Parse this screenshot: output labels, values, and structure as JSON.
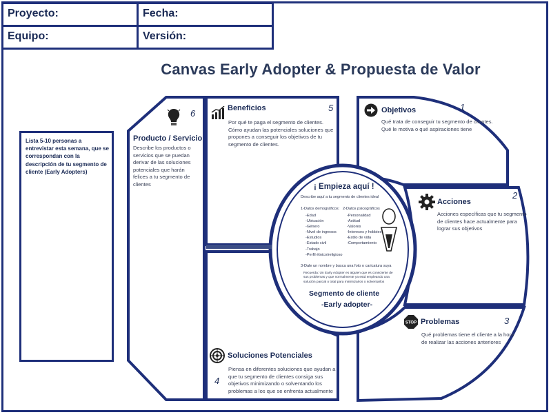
{
  "header": {
    "proyecto_label": "Proyecto:",
    "fecha_label": "Fecha:",
    "equipo_label": "Equipo:",
    "version_label": "Versión:"
  },
  "title": "Canvas Early Adopter & Propuesta de Valor",
  "left_box": {
    "text": "Lista 5-10 personas a entrevistar esta semana, que se correspondan con la descripción de tu segmento de cliente (Early Adopters)"
  },
  "producto": {
    "title": "Producto / Servicio",
    "number": "6",
    "icon": "lightbulb-icon",
    "text": "Describe los productos o servicios que se puedan derivar de las soluciones potenciales que harán felices a tu segmento de clientes"
  },
  "beneficios": {
    "title": "Beneficios",
    "number": "5",
    "icon": "chart-icon",
    "text": "Por qué te paga el segmento de clientes. Cómo ayudan las potenciales soluciones que propones a conseguir los objetivos de tu segmento de clientes."
  },
  "soluciones": {
    "title": "Soluciones Potenciales",
    "number": "4",
    "icon": "target-icon",
    "text": "Piensa en diferentes soluciones que ayudan a que tu segmento de clientes consiga sus objetivos minimizando o solventando los problemas a los que se enfrenta actualmente"
  },
  "objetivos": {
    "title": "Objetivos",
    "number": "1",
    "icon": "arrow-circle-icon",
    "text": "Qué trata de conseguir tu segmento de clientes. Qué le motiva o qué aspiraciones tiene"
  },
  "acciones": {
    "title": "Acciones",
    "number": "2",
    "icon": "gear-icon",
    "text": "Acciones específicas que tu segmento de clientes hace actualmente para lograr sus objetivos"
  },
  "problemas": {
    "title": "Problemas",
    "number": "3",
    "icon": "stop-icon",
    "icon_text": "STOP",
    "text": "Qué problemas tiene el cliente a la hora de realizar las acciones anteriores"
  },
  "segmento": {
    "heading": "¡ Empieza aquí !",
    "subheading": "Describe aquí a tu segmento de clientes ideal",
    "demo_title": "1-Datos demográficos:",
    "demo_items": [
      "-Edad",
      "-Ubicación",
      "-Género",
      "-Nivel de ingresos",
      "-Estudios",
      "-Estado civil",
      "-Trabajo",
      "-Perfil étnico/religioso"
    ],
    "psico_title": "2-Datos psicográficos",
    "psico_items": [
      "-Personalidad",
      "-Actitud",
      "-Valores",
      "-Intereses y hobbies",
      "-Estilo de vida",
      "-Comportamiento"
    ],
    "step3": "3-Dale un nombre y busca una foto o caricatura suya",
    "recuerda": "Recuerda: Un Early Adopter es alguien que es consciente de sus problemas y que normalmente ya está empleando una solución parcial o total para minimizarlos o solventarlos",
    "footer_line1": "Segmento de cliente",
    "footer_line2": "-Early adopter-",
    "icon": "person-icon"
  },
  "colors": {
    "border": "#1e2f7a",
    "text": "#1a2a55"
  }
}
